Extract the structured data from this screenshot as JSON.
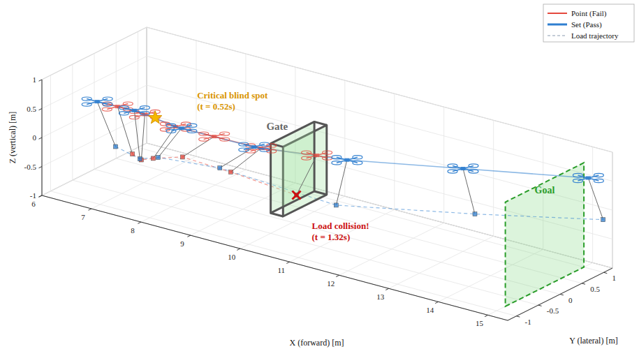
{
  "chart_data": {
    "type": "line3d",
    "xlabel": "X (forward) [m]",
    "ylabel": "Y (lateral) [m]",
    "zlabel": "Z (vertical) [m]",
    "xlim": [
      6,
      15.4
    ],
    "ylim": [
      -1.2,
      1.2
    ],
    "zlim": [
      -1,
      1
    ],
    "xticks": [
      6,
      7,
      8,
      9,
      10,
      11,
      12,
      13,
      14,
      15
    ],
    "yticks": [
      -1,
      -0.5,
      0,
      0.5,
      1
    ],
    "zticks": [
      -1,
      -0.5,
      0,
      0.5,
      1
    ],
    "grid": true,
    "legend": "upper right",
    "series": [
      {
        "name": "Point (Fail)",
        "color": "#e5483d",
        "line_style": "solid",
        "x": [
          6.91,
          7.46,
          8.08,
          8.86,
          9.54,
          10.49
        ],
        "y": [
          -0.5,
          -0.5,
          -0.5,
          -0.5,
          -0.2,
          0
        ],
        "z": [
          0.48,
          0.47,
          0.4,
          0.41,
          0.25,
          0.27
        ],
        "load_x": [
          7.21,
          7.39,
          7.63,
          8.22,
          8.93,
          10.08
        ],
        "load_y": [
          -0.5,
          -0.5,
          -0.5,
          -0.5,
          -0.2,
          0
        ],
        "load_z": [
          -0.27,
          -0.33,
          -0.25,
          -0.09,
          -0.3,
          -0.51
        ]
      },
      {
        "name": "Set (Pass)",
        "color": "#2f7fd0",
        "line_style": "solid",
        "x": [
          6.5,
          7.25,
          8.2,
          9.4,
          11.1,
          13.0,
          15.0
        ],
        "y": [
          -0.5,
          -0.5,
          -0.5,
          -0.2,
          0,
          0.5,
          1.1
        ],
        "z": [
          0.47,
          0.49,
          0.4,
          0.24,
          0.33,
          0.43,
          0.5
        ],
        "load_x": [
          6.87,
          7.36,
          7.73,
          8.71,
          10.88,
          13.24,
          15.3
        ],
        "load_y": [
          -0.5,
          -0.5,
          -0.5,
          -0.2,
          0,
          0.5,
          1.1
        ],
        "load_z": [
          -0.22,
          -0.32,
          -0.21,
          -0.28,
          -0.5,
          -0.3,
          -0.15
        ]
      },
      {
        "name": "Load trajectory",
        "color": "#8a9bb0",
        "line_style": "dashed"
      }
    ],
    "annotations": [
      {
        "text": [
          "Critical blind spot",
          "(t = 0.52s)"
        ],
        "x": 7.67,
        "y": -0.5,
        "z": 0.46,
        "marker": "star",
        "color": "#d99400"
      },
      {
        "text": [
          "Load collision!",
          "(t = 1.32s)"
        ],
        "x": 10.08,
        "y": 0,
        "z": -0.51,
        "marker": "x",
        "color": "#cc1010"
      }
    ],
    "gate": {
      "label": "Gate",
      "x": [
        10,
        10.25
      ],
      "y": [
        -0.5,
        0.5
      ],
      "z": [
        -0.65,
        0.55
      ]
    },
    "goal": {
      "label": "Goal",
      "x": 15,
      "y": [
        -0.8,
        1.0
      ],
      "z": [
        -1,
        0.8
      ]
    }
  }
}
